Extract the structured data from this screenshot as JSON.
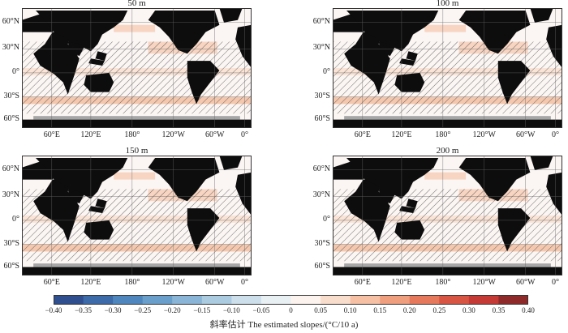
{
  "panels": [
    {
      "title": "50 m",
      "key": "p50"
    },
    {
      "title": "100 m",
      "key": "p100"
    },
    {
      "title": "150 m",
      "key": "p150"
    },
    {
      "title": "200 m",
      "key": "p200"
    }
  ],
  "lat_labels": [
    "60°N",
    "30°N",
    "0°",
    "30°S",
    "60°S"
  ],
  "lon_labels": [
    "60°E",
    "120°E",
    "180°",
    "120°W",
    "60°W",
    "0°"
  ],
  "colorbar": {
    "ticks": [
      "−0.40",
      "−0.35",
      "−0.30",
      "−0.25",
      "−0.20",
      "−0.15",
      "−0.10",
      "−0.05",
      "0",
      "0.05",
      "0.10",
      "0.15",
      "0.20",
      "0.25",
      "0.30",
      "0.35",
      "0.40"
    ],
    "colors": [
      "#2f4f8f",
      "#3d6aa8",
      "#4f86be",
      "#6a9ecb",
      "#8bb5d6",
      "#abcbe0",
      "#cddfeb",
      "#e9f0f4",
      "#fdf3ee",
      "#f9ddcc",
      "#f5c0a4",
      "#ef9f7e",
      "#e6795c",
      "#d85543",
      "#c53a35",
      "#8f2a2a"
    ],
    "title": "斜率估计 The estimated slopes/(°C/10 a)"
  },
  "colors": {
    "land": "#0d0d0d",
    "ice": "#a6a6a6",
    "ocean": "#fbf6f4"
  }
}
